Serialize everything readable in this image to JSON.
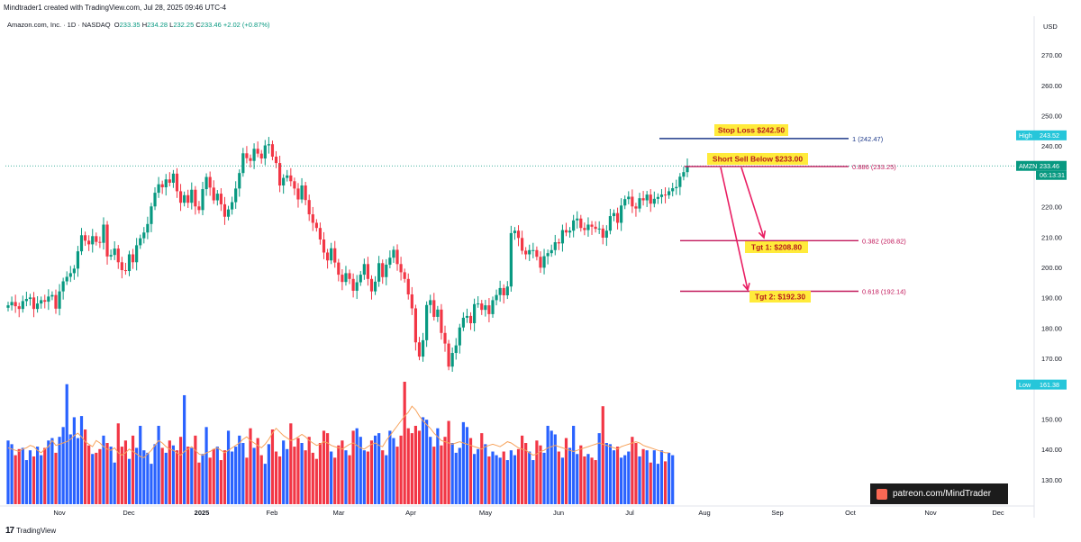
{
  "header": {
    "created_by": "Mindtrader1 created with TradingView.com, Jul 28, 2025 09:46 UTC-4"
  },
  "legend": {
    "symbol": "Amazon.com, Inc. · 1D · NASDAQ",
    "o_label": "O",
    "o_value": "233.35",
    "h_label": "H",
    "h_value": "234.28",
    "l_label": "L",
    "l_value": "232.25",
    "c_label": "C",
    "c_value": "233.46",
    "change": "+2.02 (+0.87%)"
  },
  "footer": {
    "brand": "TradingView",
    "logo": "17"
  },
  "watermark": {
    "text": "patreon.com/MindTrader"
  },
  "colors": {
    "up": "#2962ff",
    "down": "#f23645",
    "body_up": "#089981",
    "body_down": "#f23645",
    "vol_up": "#2962ff",
    "vol_down": "#f23645",
    "vol_ma": "#f7a35c",
    "fib": "#c2185b",
    "stop": "#1e3a8a",
    "annot_bg": "#ffeb3b",
    "price_tag": "#089981",
    "high_tag": "#26c6da"
  },
  "chart_data": {
    "type": "candlestick",
    "title": "Amazon.com, Inc. · 1D · NASDAQ",
    "currency_label": "USD",
    "ylim": [
      120,
      280
    ],
    "y_ticks": [
      "270.00",
      "260.00",
      "250.00",
      "240.00",
      "230.00",
      "220.00",
      "210.00",
      "200.00",
      "190.00",
      "180.00",
      "170.00",
      "150.00",
      "140.00",
      "130.00"
    ],
    "x_ticks": [
      "Nov",
      "Dec",
      "2025",
      "Feb",
      "Mar",
      "Apr",
      "May",
      "Jun",
      "Jul",
      "Aug",
      "Sep",
      "Oct",
      "Nov",
      "Dec"
    ],
    "bold_x_ticks": [
      "2025"
    ],
    "series_close": [
      187.5,
      188.6,
      187.2,
      186.3,
      188.9,
      189.6,
      190.1,
      186.3,
      188.1,
      189.2,
      188.7,
      190.4,
      190.9,
      186.4,
      192.1,
      195.4,
      196.9,
      198.1,
      199.6,
      205.3,
      210.6,
      208.8,
      207.6,
      210.3,
      208.4,
      208.1,
      214.1,
      203.6,
      204.1,
      206.2,
      201.7,
      199.1,
      198.8,
      204.3,
      201.7,
      207.3,
      209.6,
      211.5,
      214.3,
      220.1,
      224.6,
      227.4,
      226.4,
      229.0,
      227.9,
      230.9,
      225.1,
      221.3,
      223.8,
      221.3,
      225.6,
      220.1,
      218.9,
      225.8,
      229.8,
      226.3,
      222.1,
      224.3,
      220.8,
      216.7,
      219.1,
      221.5,
      226.0,
      231.1,
      237.6,
      236.0,
      235.1,
      239.1,
      237.5,
      235.9,
      240.2,
      240.6,
      236.5,
      234.4,
      227.0,
      229.5,
      230.3,
      228.4,
      226.0,
      222.4,
      227.0,
      222.2,
      217.5,
      214.7,
      213.0,
      209.2,
      204.9,
      202.3,
      206.3,
      201.6,
      197.6,
      195.2,
      198.1,
      196.2,
      192.3,
      195.1,
      197.6,
      201.1,
      196.2,
      192.1,
      195.3,
      201.4,
      196.8,
      200.9,
      203.2,
      205.8,
      201.1,
      198.4,
      196.2,
      191.1,
      186.5,
      175.3,
      170.6,
      176.0,
      187.6,
      189.2,
      183.7,
      186.1,
      178.4,
      174.9,
      167.3,
      171.8,
      174.3,
      180.2,
      183.4,
      184.0,
      181.6,
      187.9,
      188.1,
      186.0,
      187.5,
      184.6,
      189.2,
      190.9,
      193.2,
      190.8,
      193.7,
      211.3,
      212.1,
      209.7,
      205.5,
      204.3,
      205.7,
      205.7,
      203.5,
      199.9,
      203.7,
      204.7,
      205.7,
      208.3,
      207.9,
      212.3,
      211.5,
      212.1,
      215.5,
      216.1,
      213.0,
      212.3,
      214.1,
      213.4,
      212.7,
      212.8,
      209.8,
      212.1,
      216.9,
      217.9,
      214.7,
      220.4,
      222.5,
      223.3,
      220.1,
      219.4,
      222.8,
      222.1,
      224.0,
      221.0,
      222.6,
      223.2,
      224.0,
      223.8,
      225.1,
      226.1,
      226.5,
      229.9,
      231.4,
      233.5
    ],
    "volume": [
      46,
      45,
      44,
      43,
      45,
      46,
      48,
      47,
      44,
      42,
      45,
      47,
      52,
      48,
      49,
      50,
      51,
      53,
      56,
      58,
      55,
      51,
      49,
      47,
      52,
      50,
      47,
      45,
      44,
      46,
      42,
      40,
      42,
      45,
      43,
      41,
      39,
      38,
      41,
      44,
      48,
      52,
      50,
      47,
      45,
      44,
      42,
      40,
      43,
      45,
      47,
      44,
      41,
      40,
      42,
      43,
      45,
      46,
      44,
      42,
      44,
      46,
      48,
      50,
      53,
      55,
      52,
      50,
      48,
      46,
      49,
      53,
      58,
      62,
      59,
      56,
      54,
      52,
      53,
      55,
      57,
      55,
      52,
      50,
      48,
      49,
      51,
      50,
      48,
      47,
      46,
      45,
      47,
      49,
      50,
      48,
      46,
      45,
      47,
      49,
      50,
      48,
      47,
      52,
      56,
      60,
      64,
      68,
      72,
      75,
      80,
      77,
      72,
      68,
      65,
      62,
      58,
      55,
      52,
      51,
      50,
      49,
      50,
      51,
      50,
      49,
      48,
      47,
      46,
      45,
      47,
      48,
      49,
      48,
      47,
      49,
      51,
      50,
      48,
      46,
      45,
      44,
      42,
      40,
      41,
      43,
      44,
      46,
      47,
      48,
      47,
      46,
      45,
      44,
      43,
      44,
      45,
      46,
      47,
      48,
      49,
      50,
      49,
      48,
      47,
      46,
      45,
      47,
      48,
      49,
      50,
      51,
      50,
      48,
      47,
      46,
      45,
      44,
      43,
      42,
      42
    ],
    "volume_bars": [
      52,
      49,
      40,
      45,
      46,
      36,
      44,
      39,
      47,
      40,
      46,
      52,
      54,
      42,
      55,
      63,
      98,
      57,
      71,
      54,
      72,
      61,
      48,
      41,
      42,
      45,
      56,
      50,
      47,
      34,
      66,
      47,
      52,
      37,
      56,
      46,
      64,
      44,
      42,
      33,
      49,
      64,
      46,
      42,
      52,
      48,
      44,
      55,
      89,
      47,
      46,
      56,
      34,
      41,
      63,
      38,
      45,
      47,
      36,
      44,
      60,
      43,
      47,
      56,
      50,
      38,
      62,
      46,
      54,
      40,
      33,
      49,
      61,
      43,
      39,
      52,
      45,
      66,
      47,
      54,
      50,
      44,
      55,
      42,
      37,
      50,
      60,
      58,
      43,
      38,
      48,
      52,
      44,
      40,
      60,
      62,
      55,
      44,
      43,
      52,
      56,
      58,
      44,
      40,
      60,
      54,
      47,
      56,
      100,
      62,
      58,
      64,
      60,
      71,
      69,
      55,
      47,
      62,
      48,
      55,
      68,
      50,
      42,
      46,
      67,
      63,
      54,
      41,
      45,
      58,
      49,
      39,
      43,
      40,
      38,
      43,
      36,
      44,
      40,
      45,
      56,
      50,
      43,
      36,
      52,
      48,
      42,
      64,
      60,
      57,
      43,
      38,
      54,
      46,
      64,
      41,
      48,
      39,
      41,
      38,
      36,
      58,
      80,
      50,
      49,
      44,
      47,
      38,
      40,
      43,
      55,
      50,
      39,
      45,
      44,
      34,
      44,
      33,
      44,
      35,
      42,
      40
    ],
    "high": {
      "label": "High",
      "value": "243.52"
    },
    "low": {
      "label": "Low",
      "value": "161.38"
    },
    "last": {
      "symbol": "AMZN",
      "value": "233.46",
      "countdown": "06:13:31"
    },
    "fib_levels": [
      {
        "ratio_label": "1 (242.47)",
        "value": 242.47
      },
      {
        "ratio_label": "0.886 (233.25)",
        "value": 233.25
      },
      {
        "ratio_label": "0.382 (208.82)",
        "value": 208.82
      },
      {
        "ratio_label": "0.618 (192.14)",
        "value": 192.14
      }
    ],
    "annotations": [
      {
        "text": "Stop Loss $242.50",
        "value": 242.5
      },
      {
        "text": "Short Sell Below $233.00",
        "value": 233.0
      },
      {
        "text": "Tgt 1: $208.80",
        "value": 208.8
      },
      {
        "text": "Tgt 2: $192.30",
        "value": 192.3
      }
    ]
  }
}
